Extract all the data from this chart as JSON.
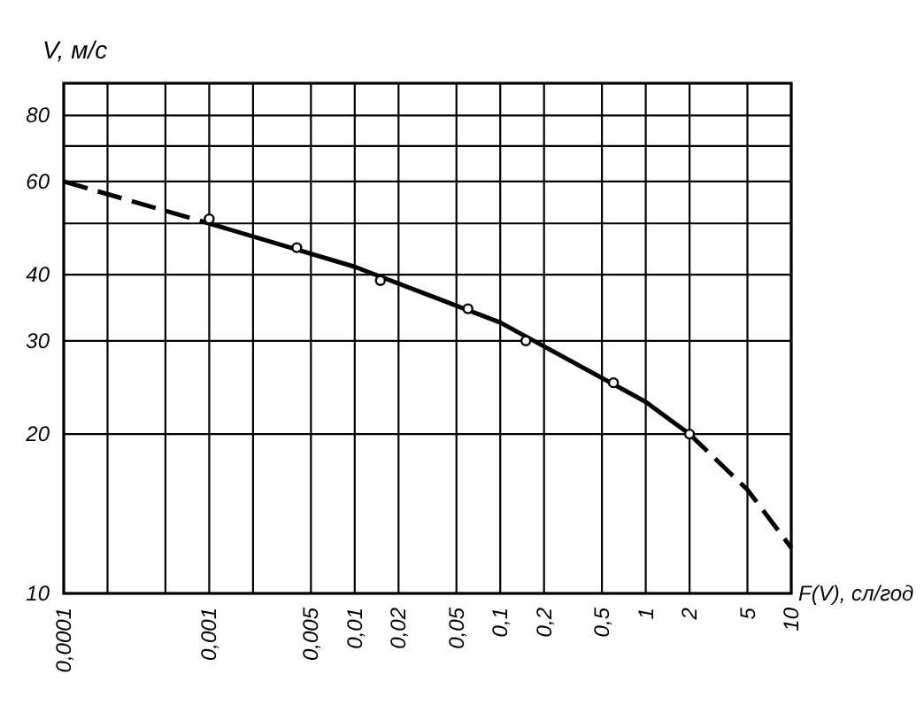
{
  "chart_data": {
    "type": "line",
    "xlabel": "F(V), сл/год",
    "ylabel": "V, м/с",
    "log": "xy",
    "grid": true,
    "xlim": [
      0.0001,
      10
    ],
    "xticks": [
      {
        "value": 0.0001,
        "label": "0,0001"
      },
      {
        "value": 0.0002,
        "label": null
      },
      {
        "value": 0.0005,
        "label": null
      },
      {
        "value": 0.001,
        "label": "0,001"
      },
      {
        "value": 0.002,
        "label": null
      },
      {
        "value": 0.005,
        "label": "0,005"
      },
      {
        "value": 0.01,
        "label": "0,01"
      },
      {
        "value": 0.02,
        "label": "0,02"
      },
      {
        "value": 0.05,
        "label": "0,05"
      },
      {
        "value": 0.1,
        "label": "0,1"
      },
      {
        "value": 0.2,
        "label": "0,2"
      },
      {
        "value": 0.5,
        "label": "0,5"
      },
      1,
      2,
      5,
      10
    ],
    "ylim": [
      10,
      92
    ],
    "yticks": [
      10,
      20,
      30,
      40,
      {
        "value": 50,
        "label": null
      },
      60,
      {
        "value": 70,
        "label": null
      },
      80
    ],
    "series": [
      {
        "color": "#000000",
        "line_style": "dashed",
        "marker": "none",
        "x": [
          0.0001,
          0.001
        ],
        "values": [
          60,
          50
        ]
      },
      {
        "color": "#000000",
        "line_style": "solid",
        "marker": "none",
        "x": [
          0.001,
          0.01,
          0.1,
          1,
          2
        ],
        "values": [
          50,
          41.4,
          32.5,
          23,
          20
        ]
      },
      {
        "color": "#000000",
        "line_style": "dashed",
        "marker": "none",
        "x": [
          2,
          5,
          10
        ],
        "values": [
          20,
          15.7,
          12.2
        ]
      },
      {
        "type": "scatter",
        "color": "#000000",
        "marker": "circle",
        "x": [
          0.001,
          0.004,
          0.015,
          0.06,
          0.15,
          0.6,
          2
        ],
        "values": [
          51,
          45,
          39,
          34.5,
          30,
          25,
          20
        ]
      }
    ]
  }
}
